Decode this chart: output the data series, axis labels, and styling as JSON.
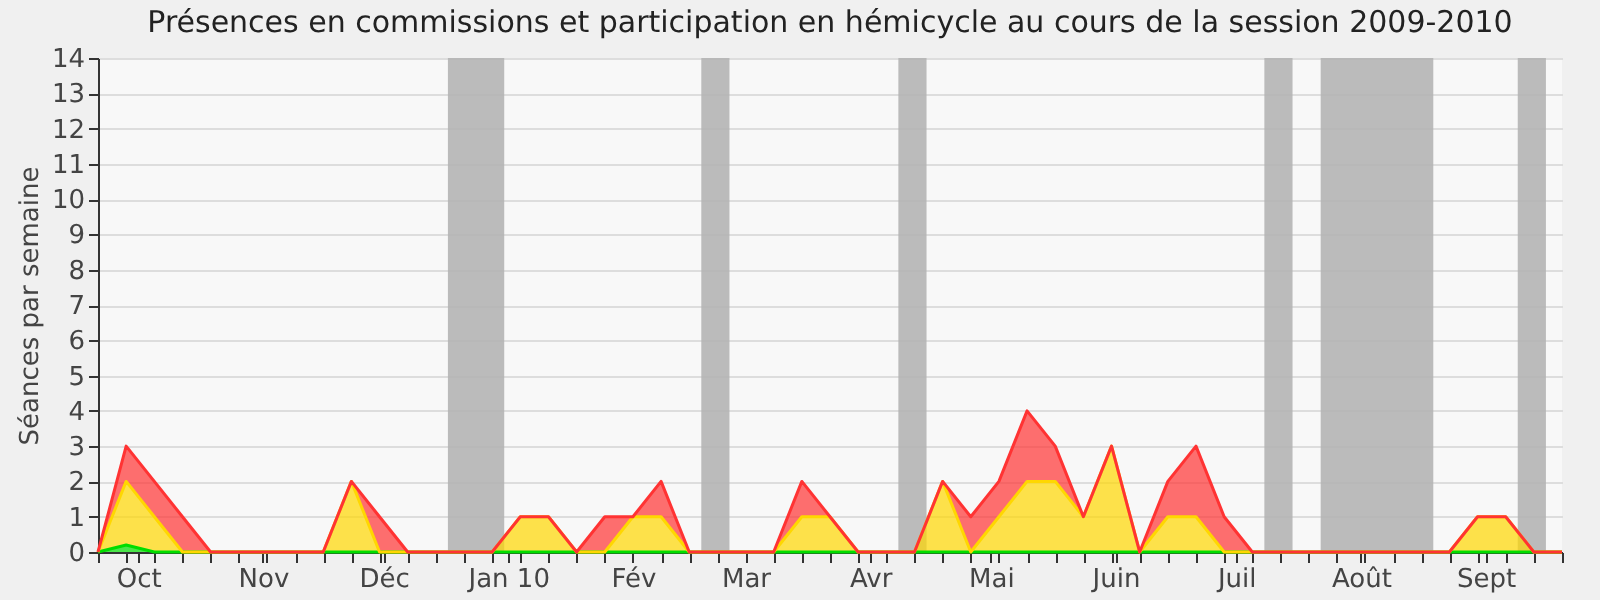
{
  "chart_data": {
    "type": "area",
    "title": "Présences en commissions et participation en hémicycle au cours de la session 2009-2010",
    "ylabel": "Séances par semaine",
    "stacked": true,
    "grid": "y",
    "x": [
      "2009-09-21",
      "2009-09-28",
      "2009-10-05",
      "2009-10-12",
      "2009-10-19",
      "2009-10-26",
      "2009-11-02",
      "2009-11-09",
      "2009-11-16",
      "2009-11-23",
      "2009-11-30",
      "2009-12-07",
      "2009-12-14",
      "2009-12-21",
      "2009-12-28",
      "2010-01-04",
      "2010-01-11",
      "2010-01-18",
      "2010-01-25",
      "2010-02-01",
      "2010-02-08",
      "2010-02-15",
      "2010-02-22",
      "2010-03-01",
      "2010-03-08",
      "2010-03-15",
      "2010-03-22",
      "2010-03-29",
      "2010-04-05",
      "2010-04-12",
      "2010-04-19",
      "2010-04-26",
      "2010-05-03",
      "2010-05-10",
      "2010-05-17",
      "2010-05-24",
      "2010-05-31",
      "2010-06-07",
      "2010-06-14",
      "2010-06-21",
      "2010-06-28",
      "2010-07-05",
      "2010-07-12",
      "2010-07-19",
      "2010-07-26",
      "2010-08-02",
      "2010-08-09",
      "2010-08-16",
      "2010-08-23",
      "2010-08-30",
      "2010-09-06",
      "2010-09-13",
      "2010-09-20"
    ],
    "xlim": [
      "2009-09-21",
      "2010-09-20"
    ],
    "xticks": [
      {
        "value": "2009-09-21",
        "label": null
      },
      {
        "value": "2009-09-28",
        "label": null
      },
      {
        "value": "2009-10-01",
        "label": "Oct"
      },
      {
        "value": "2009-10-05",
        "label": null
      },
      {
        "value": "2009-10-12",
        "label": null
      },
      {
        "value": "2009-10-19",
        "label": null
      },
      {
        "value": "2009-10-26",
        "label": null
      },
      {
        "value": "2009-11-01",
        "label": "Nov"
      },
      {
        "value": "2009-11-02",
        "label": null
      },
      {
        "value": "2009-11-09",
        "label": null
      },
      {
        "value": "2009-11-16",
        "label": null
      },
      {
        "value": "2009-11-23",
        "label": null
      },
      {
        "value": "2009-11-30",
        "label": null
      },
      {
        "value": "2009-12-01",
        "label": "Déc"
      },
      {
        "value": "2009-12-07",
        "label": null
      },
      {
        "value": "2009-12-14",
        "label": null
      },
      {
        "value": "2009-12-21",
        "label": null
      },
      {
        "value": "2009-12-28",
        "label": null
      },
      {
        "value": "2010-01-01",
        "label": "Jan 10"
      },
      {
        "value": "2010-01-04",
        "label": null
      },
      {
        "value": "2010-01-11",
        "label": null
      },
      {
        "value": "2010-01-18",
        "label": null
      },
      {
        "value": "2010-01-25",
        "label": null
      },
      {
        "value": "2010-02-01",
        "label": "Fév"
      },
      {
        "value": "2010-02-08",
        "label": null
      },
      {
        "value": "2010-02-15",
        "label": null
      },
      {
        "value": "2010-02-22",
        "label": null
      },
      {
        "value": "2010-03-01",
        "label": "Mar"
      },
      {
        "value": "2010-03-08",
        "label": null
      },
      {
        "value": "2010-03-15",
        "label": null
      },
      {
        "value": "2010-03-22",
        "label": null
      },
      {
        "value": "2010-03-29",
        "label": null
      },
      {
        "value": "2010-04-01",
        "label": "Avr"
      },
      {
        "value": "2010-04-05",
        "label": null
      },
      {
        "value": "2010-04-12",
        "label": null
      },
      {
        "value": "2010-04-19",
        "label": null
      },
      {
        "value": "2010-04-26",
        "label": null
      },
      {
        "value": "2010-05-01",
        "label": "Mai"
      },
      {
        "value": "2010-05-03",
        "label": null
      },
      {
        "value": "2010-05-10",
        "label": null
      },
      {
        "value": "2010-05-17",
        "label": null
      },
      {
        "value": "2010-05-24",
        "label": null
      },
      {
        "value": "2010-05-31",
        "label": null
      },
      {
        "value": "2010-06-01",
        "label": "Juin"
      },
      {
        "value": "2010-06-07",
        "label": null
      },
      {
        "value": "2010-06-14",
        "label": null
      },
      {
        "value": "2010-06-21",
        "label": null
      },
      {
        "value": "2010-06-28",
        "label": null
      },
      {
        "value": "2010-07-01",
        "label": "Juil"
      },
      {
        "value": "2010-07-05",
        "label": null
      },
      {
        "value": "2010-07-12",
        "label": null
      },
      {
        "value": "2010-07-19",
        "label": null
      },
      {
        "value": "2010-07-26",
        "label": null
      },
      {
        "value": "2010-08-01",
        "label": "Août"
      },
      {
        "value": "2010-08-02",
        "label": null
      },
      {
        "value": "2010-08-09",
        "label": null
      },
      {
        "value": "2010-08-16",
        "label": null
      },
      {
        "value": "2010-08-23",
        "label": null
      },
      {
        "value": "2010-08-30",
        "label": null
      },
      {
        "value": "2010-09-01",
        "label": "Sept"
      },
      {
        "value": "2010-09-06",
        "label": null
      },
      {
        "value": "2010-09-13",
        "label": null
      },
      {
        "value": "2010-09-20",
        "label": null
      }
    ],
    "ylim": [
      0,
      14
    ],
    "yticks": [
      0,
      1,
      2,
      3,
      4,
      5,
      6,
      7,
      8,
      9,
      10,
      11,
      12,
      13,
      14
    ],
    "series": [
      {
        "color": "#00dd00",
        "values": [
          0,
          0.2,
          0,
          0,
          0,
          0,
          0,
          0,
          0,
          0,
          0,
          0,
          0,
          0,
          0,
          0,
          0,
          0,
          0,
          0,
          0,
          0,
          0,
          0,
          0,
          0,
          0,
          0,
          0,
          0,
          0,
          0,
          0,
          0,
          0,
          0,
          0,
          0,
          0,
          0,
          0,
          0,
          0,
          0,
          0,
          0,
          0,
          0,
          0,
          0,
          0,
          0,
          0
        ]
      },
      {
        "color": "#ffd700",
        "values": [
          0,
          1.8,
          1,
          0,
          0,
          0,
          0,
          0,
          0,
          2,
          0,
          0,
          0,
          0,
          0,
          1,
          1,
          0,
          0,
          1,
          1,
          0,
          0,
          0,
          0,
          1,
          1,
          0,
          0,
          0,
          2,
          0,
          1,
          2,
          2,
          1,
          3,
          0,
          1,
          1,
          0,
          0,
          0,
          0,
          0,
          0,
          0,
          0,
          0,
          1,
          1,
          0,
          0
        ]
      },
      {
        "color": "#ff3333",
        "values": [
          0,
          1,
          1,
          1,
          0,
          0,
          0,
          0,
          0,
          0,
          1,
          0,
          0,
          0,
          0,
          0,
          0,
          0,
          1,
          0,
          1,
          0,
          0,
          0,
          0,
          1,
          0,
          0,
          0,
          0,
          0,
          1,
          1,
          2,
          1,
          0,
          0,
          0,
          1,
          2,
          1,
          0,
          0,
          0,
          0,
          0,
          0,
          0,
          0,
          0,
          0,
          0,
          0
        ]
      }
    ],
    "bands": [
      {
        "axis": "x",
        "from": "2009-12-17",
        "to": "2009-12-31",
        "color": "#b4b4b4"
      },
      {
        "axis": "x",
        "from": "2010-02-18",
        "to": "2010-02-25",
        "color": "#b4b4b4"
      },
      {
        "axis": "x",
        "from": "2010-04-08",
        "to": "2010-04-15",
        "color": "#b4b4b4"
      },
      {
        "axis": "x",
        "from": "2010-07-08",
        "to": "2010-07-15",
        "color": "#b4b4b4"
      },
      {
        "axis": "x",
        "from": "2010-07-22",
        "to": "2010-08-19",
        "color": "#b4b4b4"
      },
      {
        "axis": "x",
        "from": "2010-09-09",
        "to": "2010-09-16",
        "color": "#b4b4b4"
      }
    ]
  }
}
